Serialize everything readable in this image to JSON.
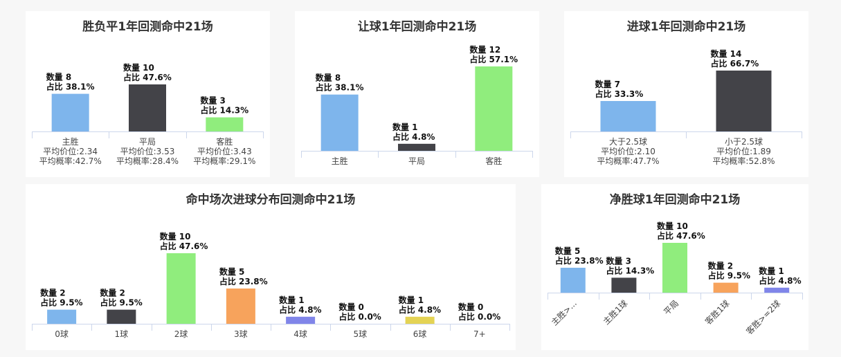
{
  "colors": {
    "blue": "#7eb5ec",
    "dark": "#434348",
    "green": "#90ed7d",
    "orange": "#f7a35c",
    "purple": "#8085e9",
    "yellow": "#e4d354"
  },
  "data_label_prefix": {
    "count": "数量",
    "share": "占比"
  },
  "chart_data": [
    {
      "id": "wdl",
      "type": "bar",
      "title": "胜负平1年回测命中21场",
      "categories": [
        "主胜",
        "平局",
        "客胜"
      ],
      "values": [
        8,
        10,
        3
      ],
      "percents": [
        "38.1%",
        "47.6%",
        "14.3%"
      ],
      "colors": [
        "blue",
        "dark",
        "green"
      ],
      "sublabels": [
        [
          "平均价位:2.34",
          "平均概率:42.7%"
        ],
        [
          "平均价位:3.53",
          "平均概率:28.4%"
        ],
        [
          "平均价位:3.43",
          "平均概率:29.1%"
        ]
      ],
      "ylim": [
        0,
        10
      ]
    },
    {
      "id": "handicap",
      "type": "bar",
      "title": "让球1年回测命中21场",
      "categories": [
        "主胜",
        "平局",
        "客胜"
      ],
      "values": [
        8,
        1,
        12
      ],
      "percents": [
        "38.1%",
        "4.8%",
        "57.1%"
      ],
      "colors": [
        "blue",
        "dark",
        "green"
      ],
      "ylim": [
        0,
        12
      ]
    },
    {
      "id": "goals",
      "type": "bar",
      "title": "进球1年回测命中21场",
      "categories": [
        "大于2.5球",
        "小于2.5球"
      ],
      "values": [
        7,
        14
      ],
      "percents": [
        "33.3%",
        "66.7%"
      ],
      "colors": [
        "blue",
        "dark"
      ],
      "sublabels": [
        [
          "平均价位:2.10",
          "平均概率:47.7%"
        ],
        [
          "平均价位:1.89",
          "平均概率:52.8%"
        ]
      ],
      "ylim": [
        0,
        14
      ]
    },
    {
      "id": "dist",
      "type": "bar",
      "title": "命中场次进球分布回测命中21场",
      "categories": [
        "0球",
        "1球",
        "2球",
        "3球",
        "4球",
        "5球",
        "6球",
        "7+"
      ],
      "values": [
        2,
        2,
        10,
        5,
        1,
        0,
        1,
        0
      ],
      "percents": [
        "9.5%",
        "9.5%",
        "47.6%",
        "23.8%",
        "4.8%",
        "0.0%",
        "4.8%",
        "0.0%"
      ],
      "colors": [
        "blue",
        "dark",
        "green",
        "orange",
        "purple",
        "blue",
        "yellow",
        "dark"
      ],
      "ylim": [
        0,
        10
      ]
    },
    {
      "id": "margin",
      "type": "bar",
      "title": "净胜球1年回测命中21场",
      "categories": [
        "主胜>...",
        "主胜1球",
        "平局",
        "客胜1球",
        "客胜>=2球"
      ],
      "values": [
        5,
        3,
        10,
        2,
        1
      ],
      "percents": [
        "23.8%",
        "14.3%",
        "47.6%",
        "9.5%",
        "4.8%"
      ],
      "colors": [
        "blue",
        "dark",
        "green",
        "orange",
        "purple"
      ],
      "rotate_labels": true,
      "ylim": [
        0,
        10
      ]
    }
  ]
}
